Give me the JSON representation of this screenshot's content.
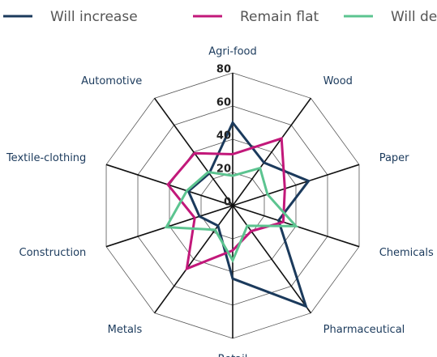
{
  "chart_data": {
    "type": "radar",
    "categories": [
      "Agri-food",
      "Wood",
      "Paper",
      "Chemicals",
      "Pharmaceutical",
      "Retail",
      "Metals",
      "Construction",
      "Textile-clothing",
      "Automotive"
    ],
    "series": [
      {
        "name": "Will increase",
        "color": "#1b3a5c",
        "values": [
          50,
          32,
          48,
          29,
          75,
          44,
          15,
          21,
          28,
          24
        ]
      },
      {
        "name": "Remain flat",
        "color": "#c2187a",
        "values": [
          31,
          50,
          33,
          32,
          19,
          27,
          47,
          24,
          41,
          39
        ]
      },
      {
        "name": "Will decrease",
        "color": "#5cc490",
        "values": [
          18,
          28,
          22,
          40,
          15,
          33,
          18,
          42,
          29,
          25
        ]
      }
    ],
    "ylim": [
      0,
      80
    ],
    "yticks": [
      0,
      20,
      40,
      60,
      80
    ],
    "grid": true,
    "legend": "top"
  }
}
